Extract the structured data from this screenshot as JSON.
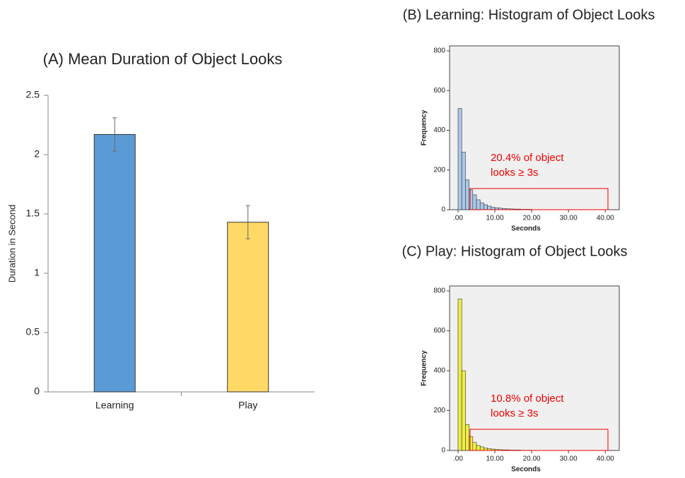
{
  "chart_data": [
    {
      "type": "bar",
      "title": "(A) Mean Duration of Object Looks",
      "ylabel": "Duration in Second",
      "categories": [
        "Learning",
        "Play"
      ],
      "values": [
        2.17,
        1.43
      ],
      "errors": [
        0.14,
        0.14
      ],
      "colors": [
        "#5b9bd5",
        "#ffd966"
      ],
      "ylim": [
        0,
        2.5
      ],
      "yticks": [
        0,
        0.5,
        1,
        1.5,
        2,
        2.5
      ]
    },
    {
      "type": "histogram",
      "title": "(B) Learning: Histogram of Object Looks",
      "xlabel": "Seconds",
      "ylabel": "Frequency",
      "bins": [
        0,
        1,
        2,
        3,
        4,
        5,
        6,
        7,
        8,
        9,
        10,
        11,
        12,
        13,
        14,
        15,
        16,
        17,
        18,
        19,
        20
      ],
      "values": [
        510,
        290,
        150,
        100,
        75,
        50,
        35,
        25,
        18,
        12,
        10,
        8,
        6,
        5,
        4,
        3,
        3,
        2,
        2,
        2
      ],
      "color": "#a9c8e8",
      "xlim": [
        -2.3,
        43.8
      ],
      "ylim": [
        0,
        825
      ],
      "xticks": [
        {
          "value": 0,
          "label": ".00"
        },
        {
          "value": 10,
          "label": "10.00"
        },
        {
          "value": 20,
          "label": "20.00"
        },
        {
          "value": 30,
          "label": "30.00"
        },
        {
          "value": 40,
          "label": "40.00"
        }
      ],
      "yticks": [
        0,
        200,
        400,
        600,
        800
      ],
      "annotation": [
        "20.4% of object",
        "looks ≥ 3s"
      ]
    },
    {
      "type": "histogram",
      "title": "(C) Play: Histogram of Object Looks",
      "xlabel": "Seconds",
      "ylabel": "Frequency",
      "bins": [
        0,
        1,
        2,
        3,
        4,
        5,
        6,
        7,
        8,
        9,
        10,
        11,
        12,
        13,
        14,
        15,
        16,
        17,
        18,
        19,
        20
      ],
      "values": [
        760,
        400,
        130,
        70,
        40,
        25,
        18,
        12,
        9,
        7,
        5,
        4,
        3,
        3,
        2,
        2,
        2,
        1,
        1,
        1
      ],
      "color": "#eeee44",
      "xlim": [
        -2.3,
        43.8
      ],
      "ylim": [
        0,
        825
      ],
      "xticks": [
        {
          "value": 0,
          "label": ".00"
        },
        {
          "value": 10,
          "label": "10.00"
        },
        {
          "value": 20,
          "label": "20.00"
        },
        {
          "value": 30,
          "label": "30.00"
        },
        {
          "value": 40,
          "label": "40.00"
        }
      ],
      "yticks": [
        0,
        200,
        400,
        600,
        800
      ],
      "annotation": [
        "10.8% of object",
        "looks ≥ 3s"
      ]
    }
  ]
}
